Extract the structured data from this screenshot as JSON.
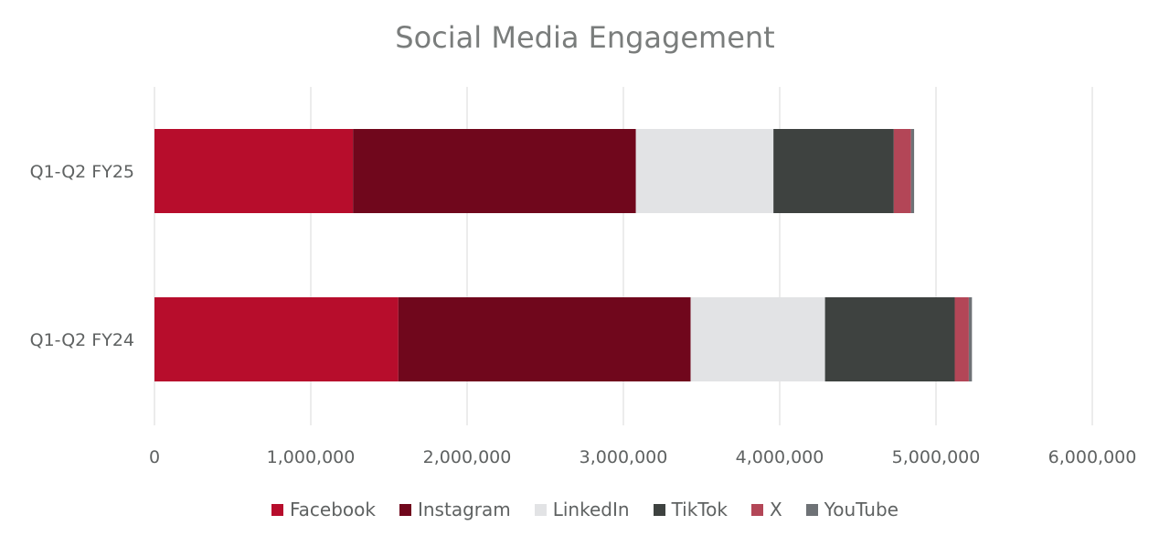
{
  "chart_data": {
    "type": "bar",
    "orientation": "horizontal",
    "stacked": true,
    "title": "Social Media Engagement",
    "categories": [
      "Q1-Q2 FY25",
      "Q1-Q2 FY24"
    ],
    "series": [
      {
        "name": "Facebook",
        "color": "#b70d2c",
        "values": [
          1270000,
          1560000
        ]
      },
      {
        "name": "Instagram",
        "color": "#70071c",
        "values": [
          1810000,
          1870000
        ]
      },
      {
        "name": "LinkedIn",
        "color": "#e2e3e5",
        "values": [
          880000,
          860000
        ]
      },
      {
        "name": "TikTok",
        "color": "#3e4240",
        "values": [
          770000,
          830000
        ]
      },
      {
        "name": "X",
        "color": "#b34657",
        "values": [
          110000,
          90000
        ]
      },
      {
        "name": "YouTube",
        "color": "#6e7276",
        "values": [
          20000,
          20000
        ]
      }
    ],
    "xlim": [
      0,
      6000000
    ],
    "x_ticks": [
      0,
      1000000,
      2000000,
      3000000,
      4000000,
      5000000,
      6000000
    ],
    "x_tick_labels": [
      "0",
      "1,000,000",
      "2,000,000",
      "3,000,000",
      "4,000,000",
      "5,000,000",
      "6,000,000"
    ],
    "grid": true,
    "legend_position": "bottom",
    "xlabel": "",
    "ylabel": ""
  }
}
